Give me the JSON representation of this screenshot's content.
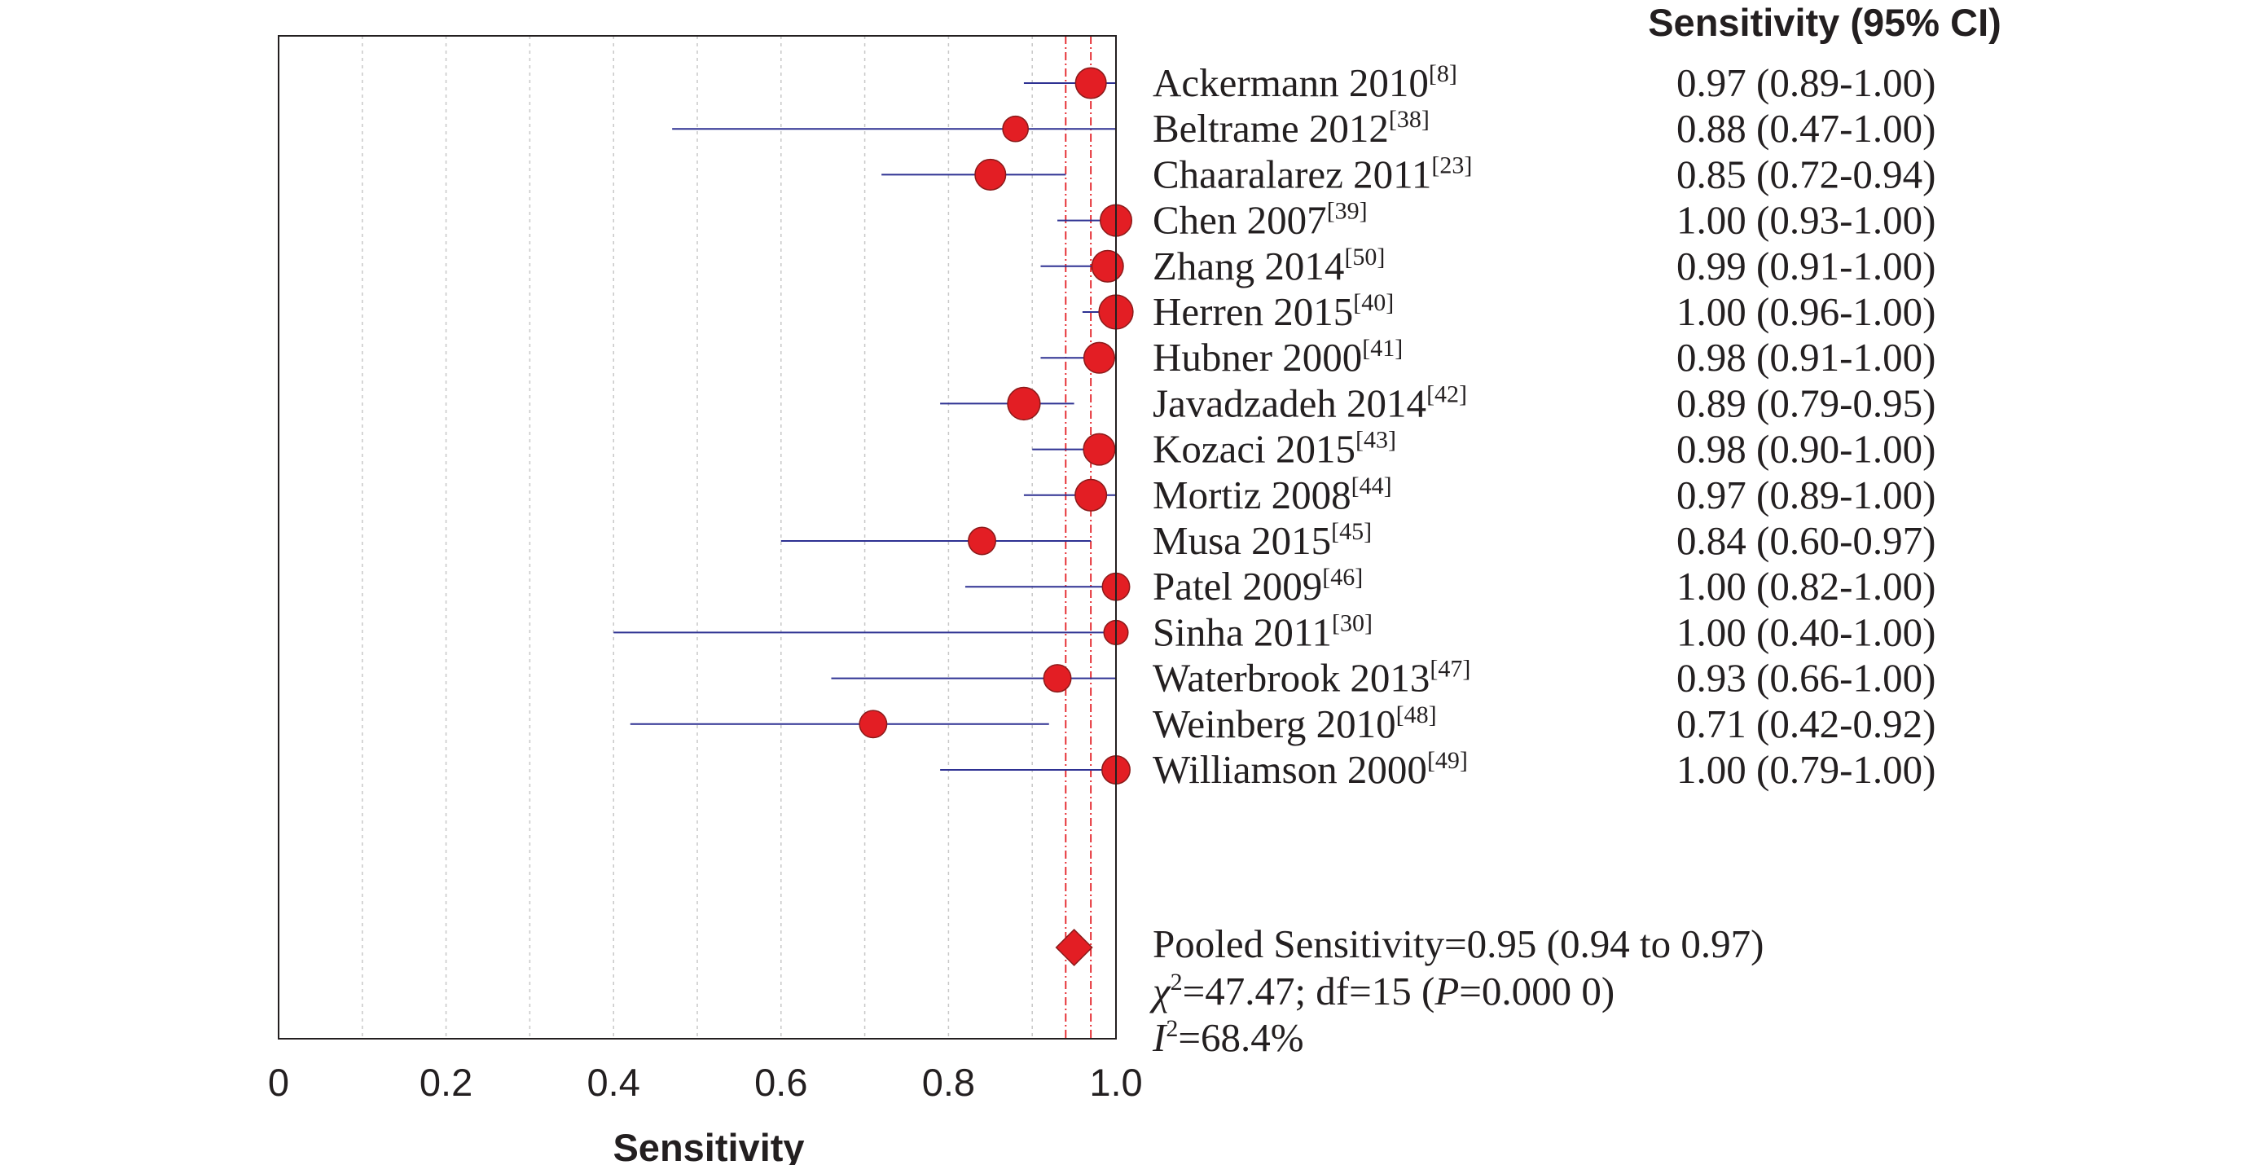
{
  "chart_data": {
    "type": "forest",
    "title": "",
    "xlabel": "Sensitivity",
    "ylabel": "",
    "xlim": [
      0,
      1.0
    ],
    "x_ticks": [
      "0",
      "0.2",
      "0.4",
      "0.6",
      "0.8",
      "1.0"
    ],
    "x_tick_values": [
      0,
      0.2,
      0.4,
      0.6,
      0.8,
      1.0
    ],
    "grid": "vertical dotted at 0.1 intervals",
    "column_header": "Sensitivity (95% CI)",
    "studies": [
      {
        "name": "Ackermann 2010",
        "ref": "[8]",
        "estimate": 0.97,
        "lower": 0.89,
        "upper": 1.0,
        "ci_text": "0.97 (0.89-1.00)",
        "weight": 0.55
      },
      {
        "name": "Beltrame 2012",
        "ref": "[38]",
        "estimate": 0.88,
        "lower": 0.47,
        "upper": 1.0,
        "ci_text": "0.88 (0.47-1.00)",
        "weight": 0.35
      },
      {
        "name": "Chaaralarez 2011",
        "ref": "[23]",
        "estimate": 0.85,
        "lower": 0.72,
        "upper": 0.94,
        "ci_text": "0.85 (0.72-0.94)",
        "weight": 0.55
      },
      {
        "name": "Chen 2007",
        "ref": "[39]",
        "estimate": 1.0,
        "lower": 0.93,
        "upper": 1.0,
        "ci_text": "1.00 (0.93-1.00)",
        "weight": 0.58
      },
      {
        "name": "Zhang 2014",
        "ref": "[50]",
        "estimate": 0.99,
        "lower": 0.91,
        "upper": 1.0,
        "ci_text": "0.99 (0.91-1.00)",
        "weight": 0.58
      },
      {
        "name": "Herren 2015",
        "ref": "[40]",
        "estimate": 1.0,
        "lower": 0.96,
        "upper": 1.0,
        "ci_text": "1.00 (0.96-1.00)",
        "weight": 0.68
      },
      {
        "name": "Hubner 2000",
        "ref": "[41]",
        "estimate": 0.98,
        "lower": 0.91,
        "upper": 1.0,
        "ci_text": "0.98 (0.91-1.00)",
        "weight": 0.55
      },
      {
        "name": "Javadzadeh 2014",
        "ref": "[42]",
        "estimate": 0.89,
        "lower": 0.79,
        "upper": 0.95,
        "ci_text": "0.89 (0.79-0.95)",
        "weight": 0.62
      },
      {
        "name": "Kozaci 2015",
        "ref": "[43]",
        "estimate": 0.98,
        "lower": 0.9,
        "upper": 1.0,
        "ci_text": "0.98 (0.90-1.00)",
        "weight": 0.58
      },
      {
        "name": "Mortiz 2008",
        "ref": "[44]",
        "estimate": 0.97,
        "lower": 0.89,
        "upper": 1.0,
        "ci_text": "0.97 (0.89-1.00)",
        "weight": 0.58
      },
      {
        "name": "Musa 2015",
        "ref": "[45]",
        "estimate": 0.84,
        "lower": 0.6,
        "upper": 0.97,
        "ci_text": "0.84 (0.60-0.97)",
        "weight": 0.42
      },
      {
        "name": "Patel 2009",
        "ref": "[46]",
        "estimate": 1.0,
        "lower": 0.82,
        "upper": 1.0,
        "ci_text": "1.00 (0.82-1.00)",
        "weight": 0.42
      },
      {
        "name": "Sinha 2011",
        "ref": "[30]",
        "estimate": 1.0,
        "lower": 0.4,
        "upper": 1.0,
        "ci_text": "1.00 (0.40-1.00)",
        "weight": 0.3
      },
      {
        "name": "Waterbrook 2013",
        "ref": "[47]",
        "estimate": 0.93,
        "lower": 0.66,
        "upper": 1.0,
        "ci_text": "0.93 (0.66-1.00)",
        "weight": 0.42
      },
      {
        "name": "Weinberg 2010",
        "ref": "[48]",
        "estimate": 0.71,
        "lower": 0.42,
        "upper": 0.92,
        "ci_text": "0.71 (0.42-0.92)",
        "weight": 0.42
      },
      {
        "name": "Williamson 2000",
        "ref": "[49]",
        "estimate": 1.0,
        "lower": 0.79,
        "upper": 1.0,
        "ci_text": "1.00 (0.79-1.00)",
        "weight": 0.45
      }
    ],
    "pooled": {
      "estimate": 0.95,
      "lower": 0.94,
      "upper": 0.97,
      "text": "Pooled Sensitivity=0.95 (0.94 to 0.97)"
    },
    "heterogeneity": {
      "chi_symbol": "χ",
      "chi_exp": "2",
      "chi_rest": "=47.47; df=15 (",
      "p_symbol": "P",
      "p_rest": "=0.000 0)",
      "i_symbol": "I",
      "i_exp": "2",
      "i_rest": "=68.4%"
    },
    "colors": {
      "marker_fill": "#e31e24",
      "marker_stroke": "#8b1a1a",
      "ci_line": "#2e3192",
      "pooled_line": "#e31e24",
      "grid": "#c8c8c8",
      "frame": "#231f20"
    }
  }
}
